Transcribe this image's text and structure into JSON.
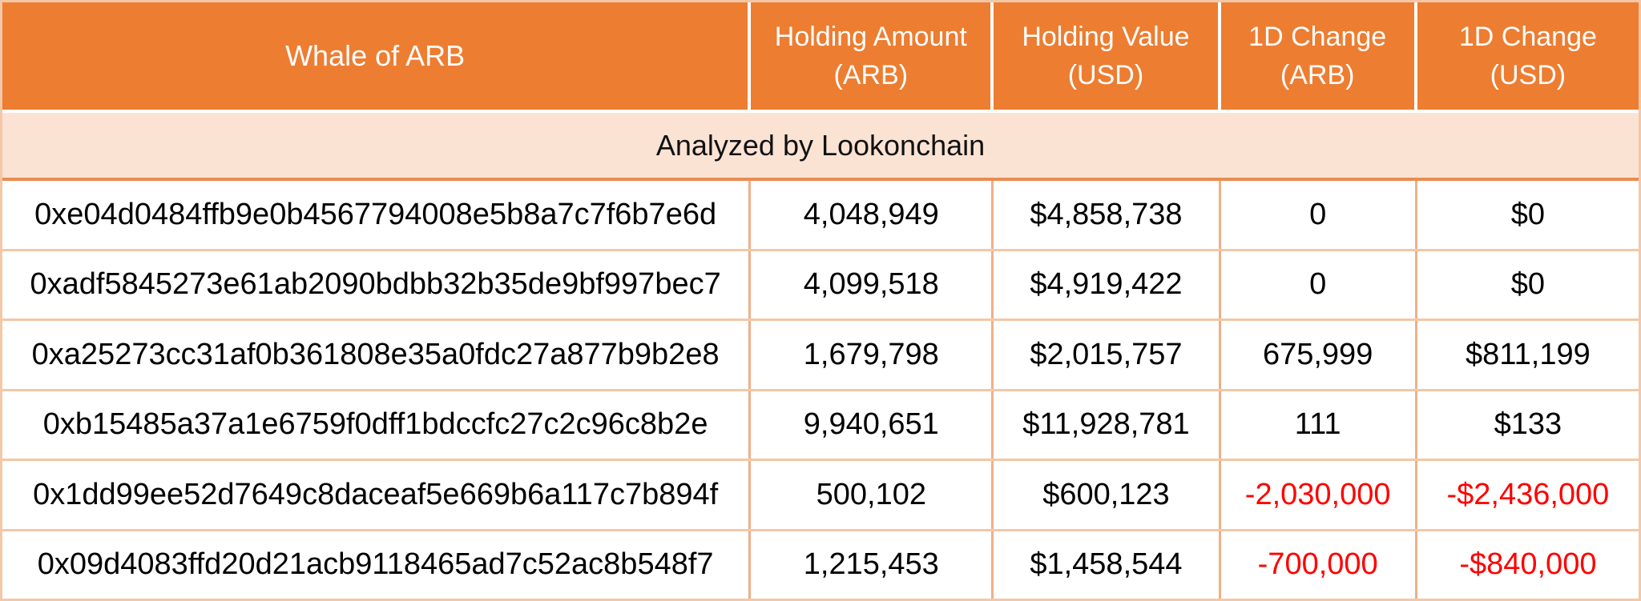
{
  "chart_data": {
    "type": "table",
    "title": "Whale of ARB",
    "subtitle": "Analyzed by Lookonchain",
    "columns": [
      "Whale of ARB",
      "Holding Amount (ARB)",
      "Holding Value (USD)",
      "1D Change (ARB)",
      "1D Change (USD)"
    ],
    "rows": [
      [
        "0xe04d0484ffb9e0b4567794008e5b8a7c7f6b7e6d",
        "4,048,949",
        "$4,858,738",
        "0",
        "$0"
      ],
      [
        "0xadf5845273e61ab2090bdbb32b35de9bf997bec7",
        "4,099,518",
        "$4,919,422",
        "0",
        "$0"
      ],
      [
        "0xa25273cc31af0b361808e35a0fdc27a877b9b2e8",
        "1,679,798",
        "$2,015,757",
        "675,999",
        "$811,199"
      ],
      [
        "0xb15485a37a1e6759f0dff1bdccfc27c2c96c8b2e",
        "9,940,651",
        "$11,928,781",
        "111",
        "$133"
      ],
      [
        "0x1dd99ee52d7649c8daceaf5e669b6a117c7b894f",
        "500,102",
        "$600,123",
        "-2,030,000",
        "-$2,436,000"
      ],
      [
        "0x09d4083ffd20d21acb9118465ad7c52ac8b548f7",
        "1,215,453",
        "$1,458,544",
        "-700,000",
        "-$840,000"
      ]
    ]
  },
  "header": {
    "title": "Whale of ARB",
    "cols": [
      {
        "line1": "Holding Amount",
        "line2": "(ARB)"
      },
      {
        "line1": "Holding Value",
        "line2": "(USD)"
      },
      {
        "line1": "1D Change",
        "line2": "(ARB)"
      },
      {
        "line1": "1D Change",
        "line2": "(USD)"
      }
    ]
  },
  "subtitle": "Analyzed by Lookonchain",
  "colors": {
    "header_bg": "#ed7d31",
    "header_fg": "#ffffff",
    "subtitle_bg": "#fbe3d4",
    "border_strong": "#ea8c50",
    "border_v": "#f0b088",
    "border_h": "#f4c7a6",
    "negative": "#ff0000"
  }
}
